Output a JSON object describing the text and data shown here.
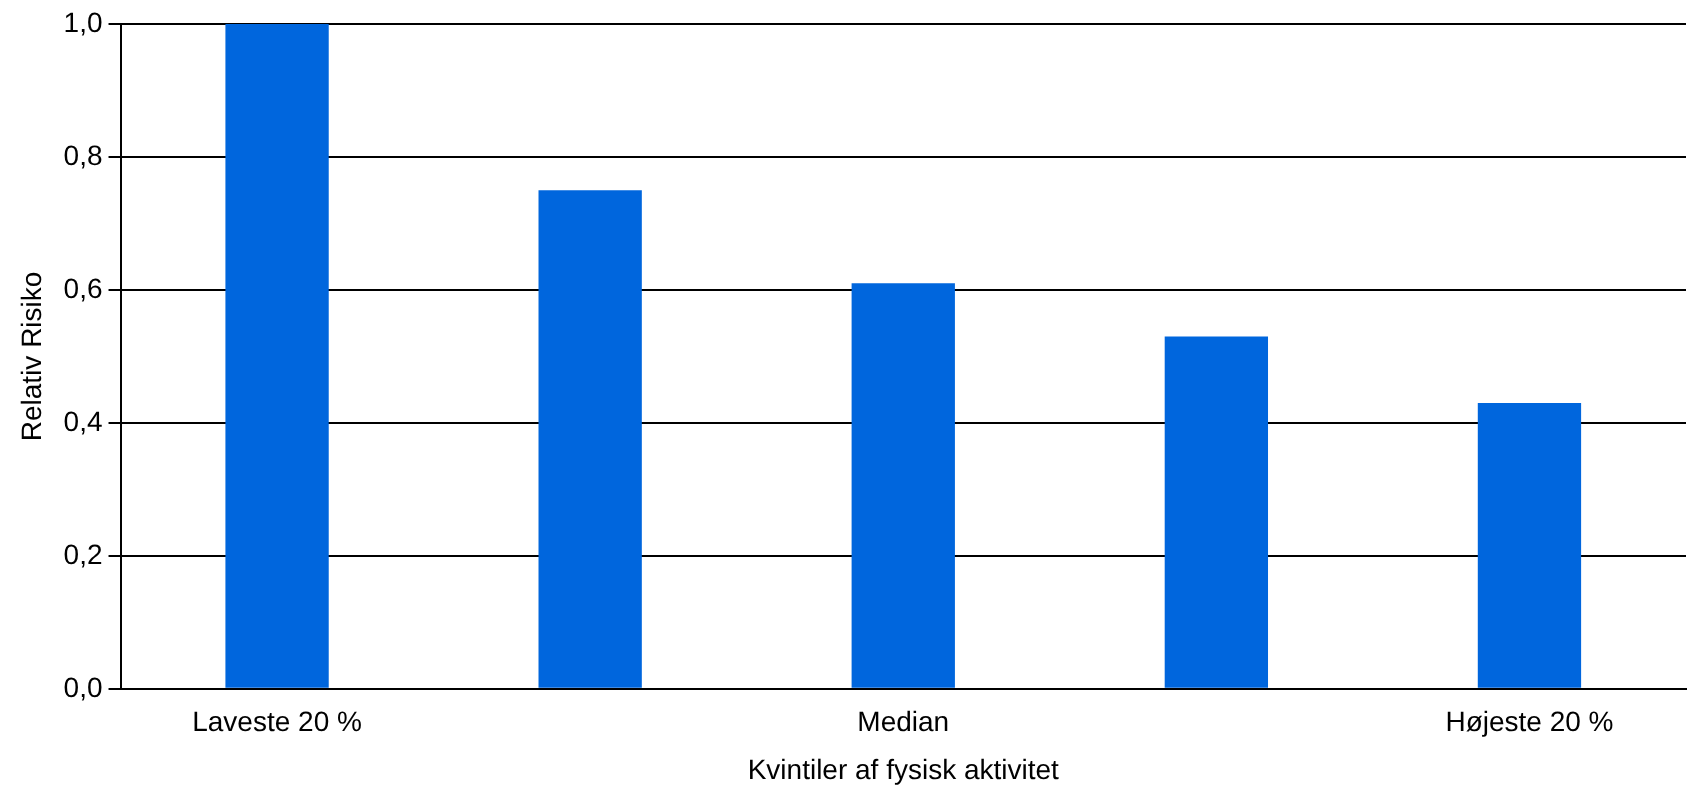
{
  "chart_data": {
    "type": "bar",
    "xlabel": "Kvintiler af fysisk aktivitet",
    "ylabel": "Relativ Risiko",
    "categories": [
      "Laveste 20 %",
      null,
      "Median",
      null,
      "Højeste 20 %"
    ],
    "values": [
      1.0,
      0.75,
      0.61,
      0.53,
      0.43
    ],
    "color": "#0066dd",
    "ylim": [
      0,
      1
    ],
    "yticks": [
      {
        "value": 0,
        "label": "0,0"
      },
      {
        "value": 0.2,
        "label": "0,2"
      },
      {
        "value": 0.4,
        "label": "0,4"
      },
      {
        "value": 0.6,
        "label": "0,6"
      },
      {
        "value": 0.8,
        "label": "0,8"
      },
      {
        "value": 1,
        "label": "1,0"
      }
    ],
    "grid": "y",
    "legend": false
  }
}
